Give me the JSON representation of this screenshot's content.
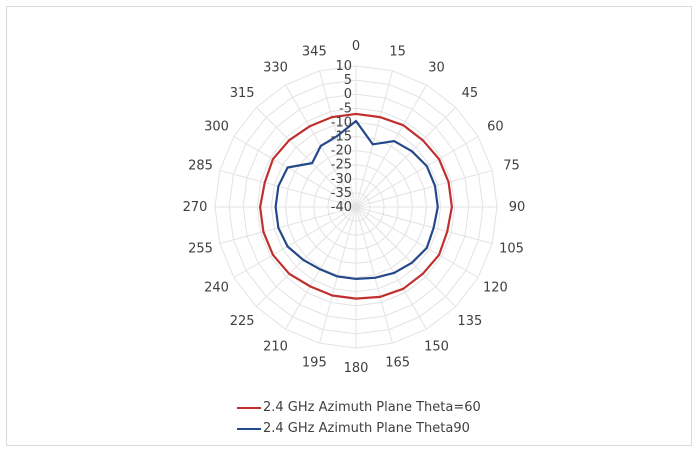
{
  "chart_data": {
    "type": "radar",
    "angles_deg": [
      0,
      15,
      30,
      45,
      60,
      75,
      90,
      105,
      120,
      135,
      150,
      165,
      180,
      195,
      210,
      225,
      240,
      255,
      270,
      285,
      300,
      315,
      330,
      345
    ],
    "angle_labels": [
      "0",
      "15",
      "30",
      "45",
      "60",
      "75",
      "90",
      "105",
      "120",
      "135",
      "150",
      "165",
      "180",
      "195",
      "210",
      "225",
      "240",
      "255",
      "270",
      "285",
      "300",
      "315",
      "330",
      "345"
    ],
    "radial_range": [
      -40,
      10
    ],
    "radial_ticks": [
      10,
      5,
      0,
      -5,
      -10,
      -15,
      -20,
      -25,
      -30,
      -35,
      -40
    ],
    "radial_tick_labels": [
      "10",
      "5",
      "0",
      "-5",
      "-10",
      "-15",
      "-20",
      "-25",
      "-30",
      "-35",
      "-40"
    ],
    "grid": true,
    "legend_position": "bottom",
    "series": [
      {
        "name": "2.4 GHz Azimuth Plane Theta=60",
        "color": "#c0302f",
        "values": [
          -7,
          -7,
          -6.5,
          -6.5,
          -6,
          -6,
          -6,
          -6.5,
          -6,
          -6.5,
          -6.5,
          -7,
          -7.5,
          -7.5,
          -7.5,
          -6.5,
          -6,
          -6,
          -6,
          -6.5,
          -6,
          -6.5,
          -7,
          -7
        ]
      },
      {
        "name": "2.4 GHz Azimuth Plane Theta90",
        "color": "#24498a",
        "values": [
          -9.5,
          -17,
          -13,
          -12,
          -11,
          -11,
          -11,
          -11.5,
          -11,
          -12,
          -13,
          -14,
          -14.5,
          -14.5,
          -14.5,
          -13.5,
          -12,
          -11.5,
          -11.5,
          -11.5,
          -12,
          -18,
          -15,
          -14
        ]
      }
    ]
  }
}
